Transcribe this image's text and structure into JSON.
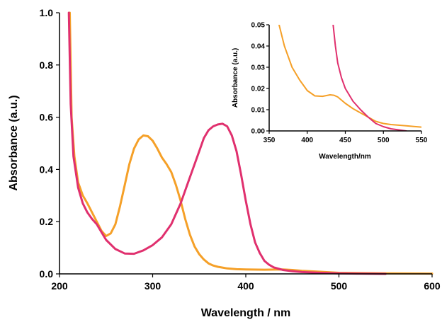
{
  "chart_data": [
    {
      "type": "line",
      "xlabel": "Wavelength / nm",
      "ylabel": "Absorbance (a.u.)",
      "xlim": [
        200,
        600
      ],
      "ylim": [
        0,
        1.0
      ],
      "xticks": [
        "200",
        "300",
        "400",
        "500",
        "600"
      ],
      "yticks": [
        "0.0",
        "0.2",
        "0.4",
        "0.6",
        "0.8",
        "1.0"
      ],
      "grid": false,
      "series": [
        {
          "color": "#f5a028",
          "x": [
            211,
            213,
            216,
            220,
            225,
            230,
            235,
            240,
            245,
            250,
            255,
            260,
            265,
            270,
            275,
            280,
            285,
            290,
            295,
            300,
            305,
            310,
            315,
            320,
            325,
            330,
            335,
            340,
            345,
            350,
            355,
            360,
            365,
            370,
            375,
            380,
            390,
            400,
            420,
            440,
            450,
            460,
            480,
            500,
            550,
            600
          ],
          "y": [
            1.0,
            0.6,
            0.45,
            0.35,
            0.3,
            0.27,
            0.235,
            0.2,
            0.165,
            0.145,
            0.155,
            0.19,
            0.26,
            0.34,
            0.42,
            0.48,
            0.515,
            0.53,
            0.527,
            0.51,
            0.48,
            0.445,
            0.42,
            0.39,
            0.34,
            0.28,
            0.21,
            0.15,
            0.105,
            0.075,
            0.055,
            0.04,
            0.032,
            0.027,
            0.024,
            0.021,
            0.018,
            0.017,
            0.016,
            0.017,
            0.015,
            0.012,
            0.008,
            0.004,
            0.002,
            0.001
          ]
        },
        {
          "color": "#e0306e",
          "x": [
            210,
            212,
            215,
            220,
            225,
            230,
            235,
            240,
            245,
            250,
            260,
            270,
            280,
            290,
            300,
            310,
            320,
            330,
            340,
            350,
            355,
            360,
            365,
            370,
            375,
            380,
            385,
            390,
            395,
            400,
            405,
            410,
            415,
            420,
            425,
            430,
            440,
            450,
            460,
            480,
            500,
            520,
            550
          ],
          "y": [
            1.0,
            0.65,
            0.45,
            0.33,
            0.27,
            0.235,
            0.21,
            0.19,
            0.16,
            0.13,
            0.095,
            0.078,
            0.077,
            0.09,
            0.11,
            0.14,
            0.19,
            0.27,
            0.37,
            0.47,
            0.52,
            0.55,
            0.565,
            0.572,
            0.575,
            0.565,
            0.53,
            0.47,
            0.38,
            0.28,
            0.19,
            0.12,
            0.08,
            0.05,
            0.035,
            0.025,
            0.015,
            0.01,
            0.007,
            0.004,
            0.002,
            0.001,
            0.0
          ]
        }
      ]
    },
    {
      "type": "line",
      "xlabel": "Wavelength/nm",
      "ylabel": "Absorbance (a.u.)",
      "xlim": [
        350,
        550
      ],
      "ylim": [
        0,
        0.05
      ],
      "xticks": [
        "350",
        "400",
        "450",
        "500",
        "550"
      ],
      "yticks": [
        "0.00",
        "0.01",
        "0.02",
        "0.03",
        "0.04",
        "0.05"
      ],
      "grid": false,
      "series": [
        {
          "color": "#f5a028",
          "x": [
            363,
            370,
            380,
            390,
            400,
            410,
            420,
            430,
            435,
            440,
            450,
            460,
            470,
            480,
            490,
            500,
            510,
            520,
            530,
            540,
            550
          ],
          "y": [
            0.05,
            0.04,
            0.03,
            0.024,
            0.019,
            0.0165,
            0.0163,
            0.017,
            0.0168,
            0.016,
            0.013,
            0.0105,
            0.0085,
            0.0065,
            0.0045,
            0.0035,
            0.003,
            0.0027,
            0.0024,
            0.0021,
            0.0018
          ]
        },
        {
          "color": "#e0306e",
          "x": [
            434,
            437,
            440,
            445,
            450,
            455,
            460,
            470,
            480,
            490,
            500,
            510,
            520,
            530
          ],
          "y": [
            0.05,
            0.04,
            0.032,
            0.025,
            0.02,
            0.017,
            0.014,
            0.01,
            0.0065,
            0.0035,
            0.002,
            0.001,
            0.0005,
            0.0
          ]
        }
      ]
    }
  ]
}
